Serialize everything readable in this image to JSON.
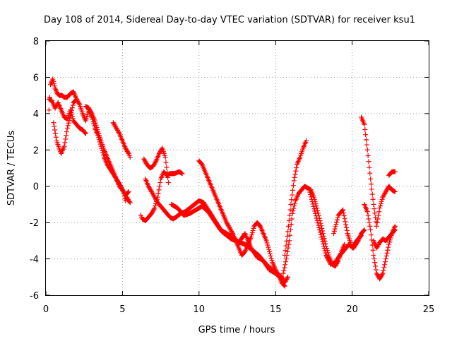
{
  "chart_data": {
    "type": "scatter",
    "title": "Day 108 of 2014, Sidereal Day-to-day VTEC variation (SDTVAR) for receiver ksu1",
    "xlabel": "GPS time / hours",
    "ylabel": "SDTVAR / TECUs",
    "xlim": [
      0,
      25
    ],
    "ylim": [
      -6,
      8
    ],
    "xticks": [
      "0",
      "5",
      "10",
      "15",
      "20",
      "25"
    ],
    "yticks": [
      "-6",
      "-4",
      "-2",
      "0",
      "2",
      "4",
      "6",
      "8"
    ],
    "grid": true,
    "marker": "+",
    "colors": {
      "series": "#ff0000",
      "grid": "#a0a0a0",
      "axis": "#000000"
    },
    "series": [
      {
        "x": [
          0.2,
          0.3,
          0.45,
          0.6,
          0.75,
          0.9,
          1.05,
          1.2,
          1.4,
          1.6,
          1.8,
          2.0
        ],
        "y": [
          4.2,
          5.6,
          5.9,
          5.4,
          5.1,
          5.0,
          5.0,
          4.9,
          4.9,
          5.1,
          5.2,
          4.8
        ]
      },
      {
        "x": [
          0.2,
          0.4,
          0.6,
          0.8,
          1.0,
          1.2,
          1.4,
          1.6,
          1.8,
          2.0,
          2.2,
          2.4,
          2.6
        ],
        "y": [
          4.8,
          4.7,
          4.3,
          4.6,
          4.2,
          3.8,
          3.7,
          4.2,
          3.6,
          3.4,
          3.2,
          3.1,
          2.9
        ]
      },
      {
        "x": [
          0.5,
          0.7,
          0.9,
          1.0,
          1.2,
          1.4,
          1.6,
          1.8,
          2.0,
          2.2,
          2.4,
          2.6,
          2.8,
          3.0,
          3.2,
          3.4,
          3.6,
          3.8,
          4.0,
          4.3,
          4.6,
          4.9,
          5.1,
          5.2,
          5.3,
          5.4,
          5.5
        ],
        "y": [
          3.5,
          2.5,
          2.0,
          1.8,
          2.2,
          3.2,
          3.9,
          4.6,
          4.8,
          4.5,
          4.0,
          3.6,
          4.2,
          3.8,
          3.2,
          2.8,
          2.2,
          1.6,
          1.2,
          0.8,
          0.4,
          0.0,
          -0.4,
          -0.8,
          -0.6,
          -0.8,
          -0.9
        ]
      },
      {
        "x": [
          2.6,
          2.8,
          3.0,
          3.2,
          3.4,
          3.6,
          3.8,
          4.0,
          4.2,
          4.4,
          4.6,
          4.8,
          5.0,
          5.2,
          5.4
        ],
        "y": [
          4.4,
          4.3,
          4.0,
          3.6,
          3.0,
          2.5,
          2.0,
          1.6,
          1.2,
          0.8,
          0.4,
          0.0,
          -0.2,
          -0.5,
          -0.3
        ]
      },
      {
        "x": [
          4.4,
          4.6,
          4.8,
          5.0,
          5.2,
          5.4,
          5.5
        ],
        "y": [
          3.5,
          3.2,
          2.9,
          2.5,
          2.1,
          1.8,
          1.6
        ]
      },
      {
        "x": [
          6.2,
          6.3,
          6.5,
          6.7,
          6.9,
          7.1,
          7.3,
          7.5,
          7.7,
          7.8,
          7.9,
          8.1,
          8.4,
          8.7,
          8.9
        ],
        "y": [
          -1.6,
          -1.8,
          -1.9,
          -1.7,
          -1.5,
          -1.2,
          -0.6,
          0.4,
          0.8,
          0.7,
          0.6,
          0.7,
          0.7,
          0.8,
          0.7
        ]
      },
      {
        "x": [
          6.4,
          6.6,
          6.8,
          7.0,
          7.2,
          7.4,
          7.6,
          7.8,
          8.0
        ],
        "y": [
          1.5,
          1.2,
          1.0,
          1.1,
          1.4,
          1.8,
          2.1,
          1.6,
          0.2
        ]
      },
      {
        "x": [
          6.5,
          6.7,
          6.9,
          7.1,
          7.3,
          7.5,
          7.7,
          7.9,
          8.1,
          8.3,
          8.5,
          8.8,
          9.1,
          9.4,
          9.7,
          10.0,
          10.3,
          10.6,
          10.9,
          11.2,
          11.5,
          11.8,
          12.1,
          12.4,
          12.7,
          13.0,
          13.3,
          13.6,
          13.9,
          14.2,
          14.5,
          14.8,
          15.1,
          15.4,
          15.6,
          15.8
        ],
        "y": [
          0.4,
          0.0,
          -0.3,
          -0.6,
          -0.9,
          -1.1,
          -1.3,
          -1.5,
          -1.7,
          -1.8,
          -1.7,
          -1.5,
          -1.4,
          -1.2,
          -1.0,
          -0.8,
          -0.9,
          -1.3,
          -1.7,
          -2.1,
          -2.5,
          -2.7,
          -2.9,
          -3.0,
          -3.1,
          -3.2,
          -3.4,
          -3.6,
          -3.8,
          -4.1,
          -4.4,
          -4.6,
          -4.8,
          -5.0,
          -5.3,
          -5.0
        ]
      },
      {
        "x": [
          8.2,
          8.6,
          9.0,
          9.4,
          9.8,
          10.2,
          10.6,
          11.0,
          11.4,
          11.8,
          12.2,
          12.6,
          13.0,
          13.4,
          13.8,
          14.2,
          14.6,
          15.0,
          15.4
        ],
        "y": [
          -1.0,
          -1.2,
          -1.6,
          -1.5,
          -1.3,
          -1.1,
          -1.4,
          -1.9,
          -2.4,
          -2.6,
          -2.8,
          -3.1,
          -2.6,
          -3.4,
          -3.9,
          -4.1,
          -4.6,
          -4.8,
          -5.1
        ]
      },
      {
        "x": [
          10.0,
          10.2,
          10.4,
          10.6,
          10.8,
          11.0,
          11.2,
          11.4,
          11.6,
          11.8,
          12.0,
          12.2,
          12.4,
          12.6,
          12.8,
          13.0,
          13.2,
          13.4,
          13.6,
          13.8,
          14.0,
          14.2,
          14.4,
          14.6,
          14.8,
          15.0,
          15.2,
          15.4,
          15.6
        ],
        "y": [
          1.4,
          1.2,
          0.8,
          0.4,
          0.0,
          -0.4,
          -0.8,
          -1.2,
          -1.6,
          -2.0,
          -2.3,
          -2.6,
          -3.0,
          -3.4,
          -3.8,
          -3.6,
          -3.2,
          -2.8,
          -2.2,
          -2.0,
          -2.2,
          -2.6,
          -3.0,
          -3.6,
          -4.2,
          -4.6,
          -4.9,
          -5.3,
          -5.5
        ]
      },
      {
        "x": [
          15.6,
          15.8,
          16.0,
          16.2,
          16.4,
          16.6,
          16.8,
          17.0
        ],
        "y": [
          -3.8,
          -2.5,
          -1.0,
          0.3,
          1.2,
          1.6,
          2.1,
          2.5
        ]
      },
      {
        "x": [
          15.5,
          15.7,
          15.9,
          16.1,
          16.3,
          16.5,
          16.7,
          16.9,
          17.1,
          17.3,
          17.5,
          17.7,
          17.9,
          18.1,
          18.3,
          18.5,
          18.7,
          18.9,
          19.1,
          19.3,
          19.5
        ],
        "y": [
          -4.8,
          -4.0,
          -3.0,
          -1.5,
          -0.8,
          -0.4,
          -0.2,
          0.0,
          -0.1,
          -0.2,
          -0.6,
          -1.2,
          -1.9,
          -2.6,
          -3.3,
          -3.9,
          -4.3,
          -4.4,
          -4.1,
          -3.6,
          -3.2
        ]
      },
      {
        "x": [
          17.2,
          17.6,
          18.0,
          18.3,
          18.6,
          18.9,
          19.2,
          19.5,
          19.8,
          20.1,
          20.4,
          20.6,
          20.8
        ],
        "y": [
          -0.2,
          -1.5,
          -2.8,
          -3.8,
          -4.3,
          -4.2,
          -3.8,
          -3.5,
          -3.2,
          -3.4,
          -3.0,
          -2.6,
          -2.4
        ]
      },
      {
        "x": [
          18.8,
          19.1,
          19.4,
          19.7,
          20.0,
          20.3,
          20.6
        ],
        "y": [
          -2.6,
          -1.6,
          -1.3,
          -2.6,
          -3.4,
          -3.0,
          -2.7
        ]
      },
      {
        "x": [
          20.6,
          20.8,
          21.0,
          21.2,
          21.4,
          21.6,
          21.8,
          22.0,
          22.2,
          22.4,
          22.6,
          22.8
        ],
        "y": [
          3.8,
          3.4,
          2.0,
          0.4,
          -1.0,
          -2.2,
          -1.2,
          -0.6,
          -0.3,
          0.0,
          -0.2,
          -0.3
        ]
      },
      {
        "x": [
          20.8,
          21.0,
          21.2,
          21.4,
          21.6,
          21.8,
          22.0,
          22.2,
          22.4,
          22.6,
          22.8
        ],
        "y": [
          -1.0,
          -1.4,
          -2.4,
          -3.8,
          -4.8,
          -5.1,
          -4.8,
          -4.0,
          -3.2,
          -2.6,
          -2.4
        ]
      },
      {
        "x": [
          21.4,
          21.6,
          21.8,
          22.0,
          22.2,
          22.4,
          22.6,
          22.8
        ],
        "y": [
          -3.0,
          -3.4,
          -3.1,
          -2.9,
          -3.0,
          -2.8,
          -2.6,
          -2.2
        ]
      },
      {
        "x": [
          22.4,
          22.6,
          22.8
        ],
        "y": [
          0.6,
          0.8,
          0.8
        ]
      }
    ]
  }
}
